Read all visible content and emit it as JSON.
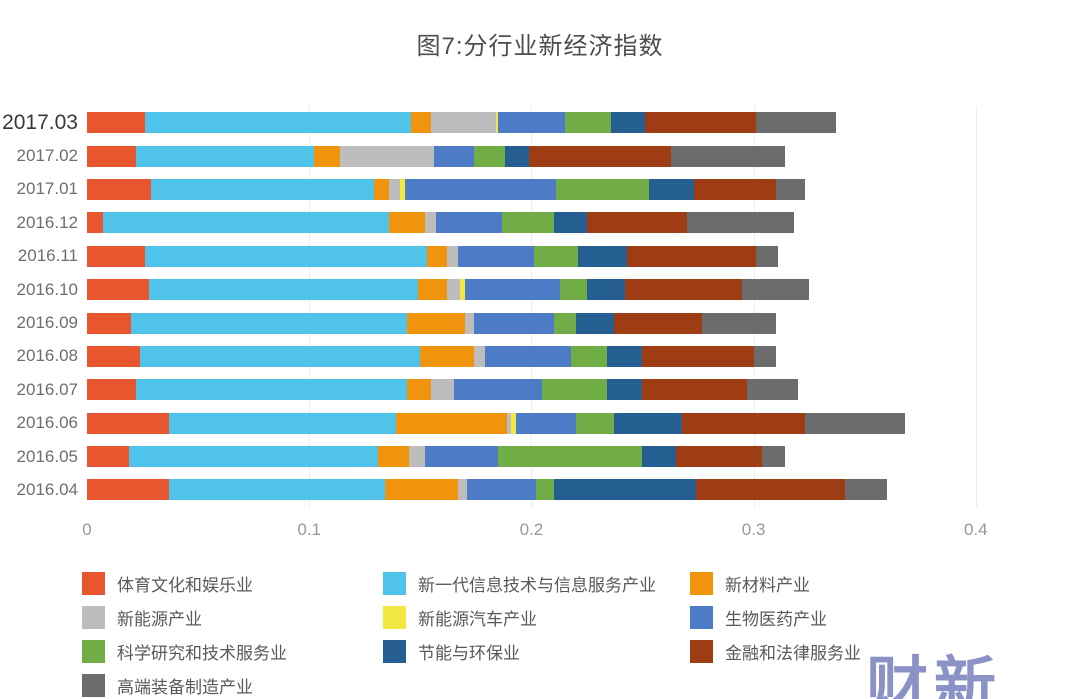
{
  "title": "图7:分行业新经济指数",
  "watermark": "财新",
  "chart_data": {
    "type": "bar",
    "orientation": "horizontal",
    "stacked": true,
    "title": "图7:分行业新经济指数",
    "xlabel": "",
    "ylabel": "",
    "xlim": [
      0,
      0.4
    ],
    "x_ticks": [
      "0",
      "0.1",
      "0.2",
      "0.3",
      "0.4"
    ],
    "grid": "vertical-faint",
    "legend_position": "bottom",
    "highlighted_category": "2017.03",
    "categories": [
      "2017.03",
      "2017.02",
      "2017.01",
      "2016.12",
      "2016.11",
      "2016.10",
      "2016.09",
      "2016.08",
      "2016.07",
      "2016.06",
      "2016.05",
      "2016.04"
    ],
    "series": [
      {
        "name": "体育文化和娱乐业",
        "color": "#E7562E",
        "values": [
          0.026,
          0.022,
          0.029,
          0.007,
          0.026,
          0.028,
          0.02,
          0.024,
          0.022,
          0.037,
          0.019,
          0.037
        ]
      },
      {
        "name": "新一代信息技术与信息服务产业",
        "color": "#4FC3EA",
        "values": [
          0.12,
          0.08,
          0.1,
          0.129,
          0.127,
          0.121,
          0.124,
          0.126,
          0.122,
          0.102,
          0.112,
          0.097
        ]
      },
      {
        "name": "新材料产业",
        "color": "#F0930D",
        "values": [
          0.009,
          0.012,
          0.007,
          0.016,
          0.009,
          0.013,
          0.026,
          0.024,
          0.011,
          0.05,
          0.014,
          0.033
        ]
      },
      {
        "name": "新能源产业",
        "color": "#BDBDBD",
        "values": [
          0.029,
          0.042,
          0.005,
          0.005,
          0.005,
          0.006,
          0.004,
          0.005,
          0.01,
          0.002,
          0.007,
          0.004
        ]
      },
      {
        "name": "新能源汽车产业",
        "color": "#F1E841",
        "values": [
          0.001,
          0.0,
          0.002,
          0.0,
          0.0,
          0.002,
          0.0,
          0.0,
          0.0,
          0.002,
          0.0,
          0.0
        ]
      },
      {
        "name": "生物医药产业",
        "color": "#4D7BC5",
        "values": [
          0.03,
          0.018,
          0.068,
          0.03,
          0.034,
          0.043,
          0.036,
          0.039,
          0.04,
          0.027,
          0.033,
          0.031
        ]
      },
      {
        "name": "科学研究和技术服务业",
        "color": "#70AD47",
        "values": [
          0.021,
          0.014,
          0.042,
          0.023,
          0.02,
          0.012,
          0.01,
          0.016,
          0.029,
          0.017,
          0.065,
          0.008
        ]
      },
      {
        "name": "节能与环保业",
        "color": "#255E91",
        "values": [
          0.015,
          0.011,
          0.02,
          0.015,
          0.022,
          0.017,
          0.017,
          0.016,
          0.016,
          0.031,
          0.015,
          0.064
        ]
      },
      {
        "name": "金融和法律服务业",
        "color": "#9E3C13",
        "values": [
          0.05,
          0.064,
          0.037,
          0.045,
          0.058,
          0.053,
          0.04,
          0.05,
          0.047,
          0.055,
          0.039,
          0.067
        ]
      },
      {
        "name": "高端装备制造产业",
        "color": "#6C6C6C",
        "values": [
          0.036,
          0.051,
          0.013,
          0.048,
          0.01,
          0.03,
          0.033,
          0.01,
          0.023,
          0.045,
          0.01,
          0.019
        ]
      }
    ]
  }
}
